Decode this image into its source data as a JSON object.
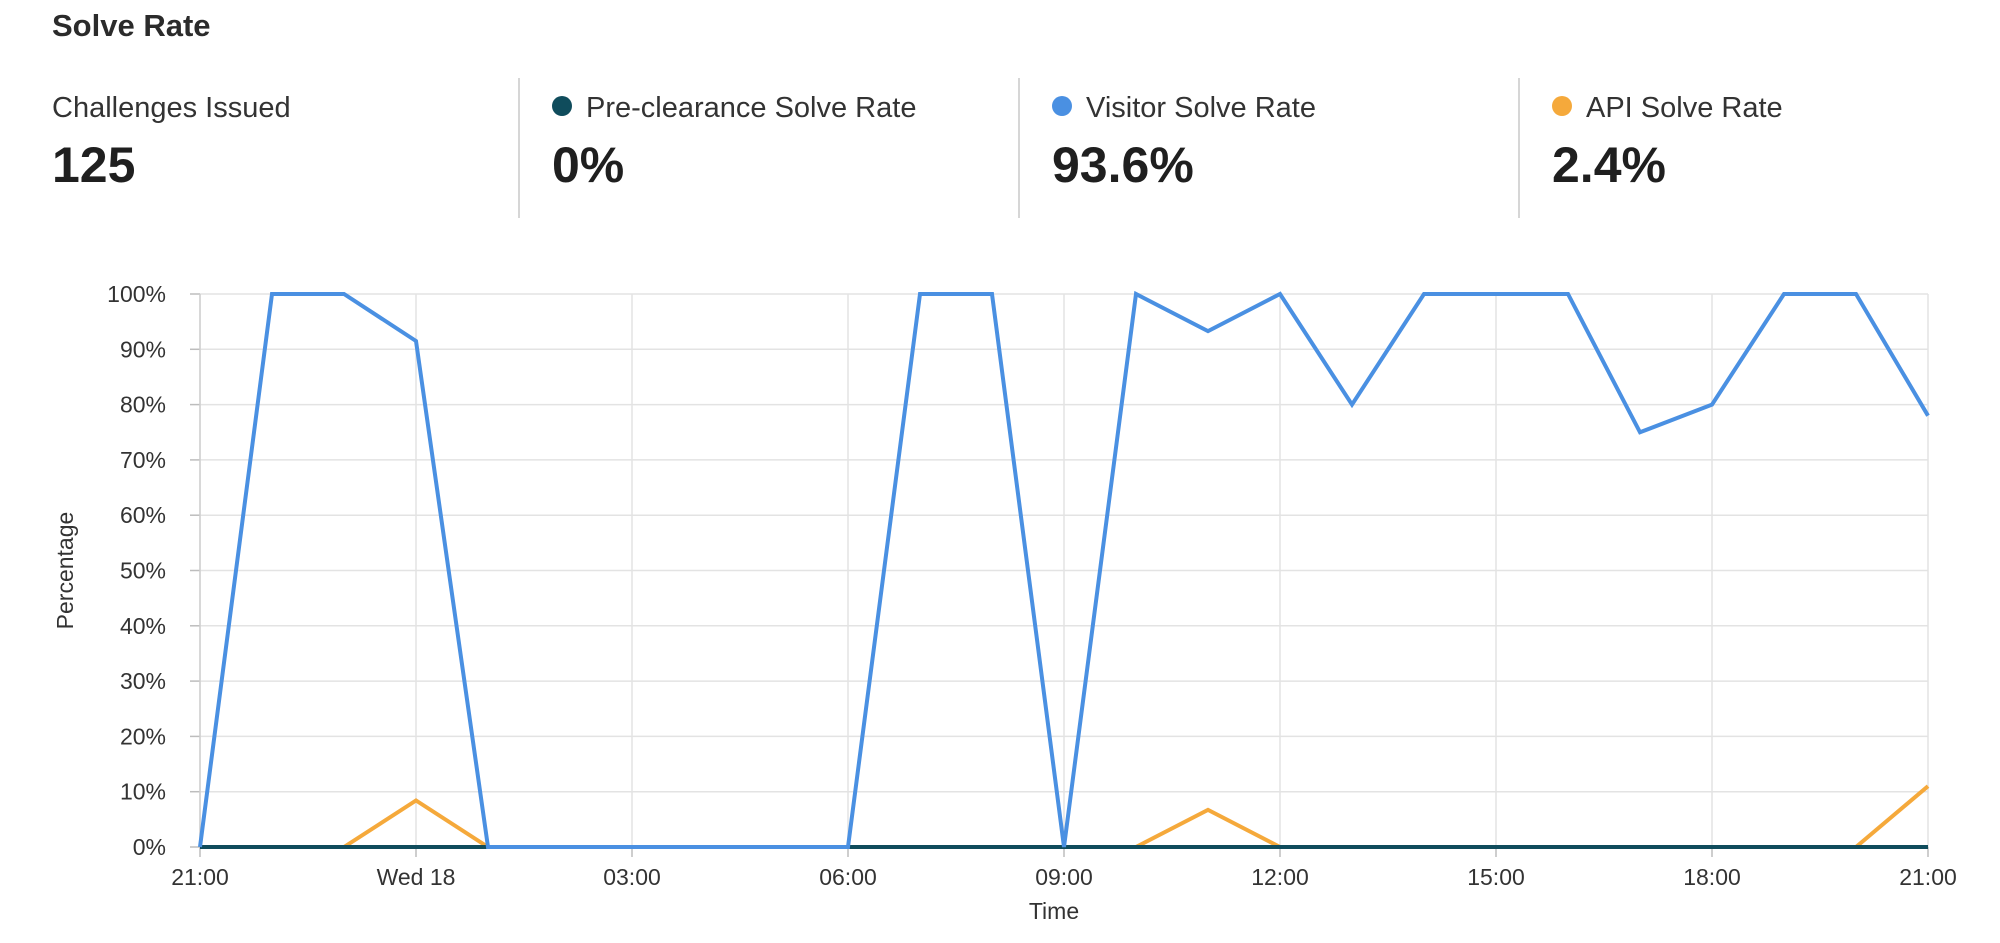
{
  "header": {
    "title": "Solve Rate"
  },
  "stats": [
    {
      "label": "Challenges Issued",
      "value": "125",
      "color": ""
    },
    {
      "label": "Pre-clearance Solve Rate",
      "value": "0%",
      "color": "#0f4c5c"
    },
    {
      "label": "Visitor Solve Rate",
      "value": "93.6%",
      "color": "#4a90e2"
    },
    {
      "label": "API Solve Rate",
      "value": "2.4%",
      "color": "#f5a93b"
    }
  ],
  "chart_data": {
    "type": "line",
    "title": "",
    "xlabel": "Time",
    "ylabel": "Percentage",
    "ylim": [
      0,
      100
    ],
    "yticks": [
      "0%",
      "10%",
      "20%",
      "30%",
      "40%",
      "50%",
      "60%",
      "70%",
      "80%",
      "90%",
      "100%"
    ],
    "xticks": [
      "21:00",
      "Wed 18",
      "03:00",
      "06:00",
      "09:00",
      "12:00",
      "15:00",
      "18:00",
      "21:00"
    ],
    "x": [
      "21:00",
      "22:00",
      "23:00",
      "Wed 18",
      "01:00",
      "02:00",
      "03:00",
      "04:00",
      "05:00",
      "06:00",
      "07:00",
      "08:00",
      "09:00",
      "10:00",
      "11:00",
      "12:00",
      "13:00",
      "14:00",
      "15:00",
      "16:00",
      "17:00",
      "18:00",
      "19:00",
      "20:00",
      "21:00"
    ],
    "grid": true,
    "series": [
      {
        "name": "Pre-clearance Solve Rate",
        "color": "#0f4c5c",
        "values": [
          0,
          0,
          0,
          0,
          0,
          0,
          0,
          0,
          0,
          0,
          0,
          0,
          0,
          0,
          0,
          0,
          0,
          0,
          0,
          0,
          0,
          0,
          0,
          0,
          0
        ]
      },
      {
        "name": "Visitor Solve Rate",
        "color": "#4a90e2",
        "values": [
          0,
          100,
          100,
          91.5,
          0,
          0,
          0,
          0,
          0,
          0,
          100,
          100,
          0,
          100,
          93.3,
          100,
          80,
          100,
          100,
          100,
          75,
          80,
          100,
          100,
          78
        ]
      },
      {
        "name": "API Solve Rate",
        "color": "#f5a93b",
        "values": [
          0,
          0,
          0,
          8.4,
          0,
          0,
          0,
          0,
          0,
          0,
          0,
          0,
          0,
          0,
          6.7,
          0,
          0,
          0,
          0,
          0,
          0,
          0,
          0,
          0,
          11
        ]
      }
    ]
  }
}
